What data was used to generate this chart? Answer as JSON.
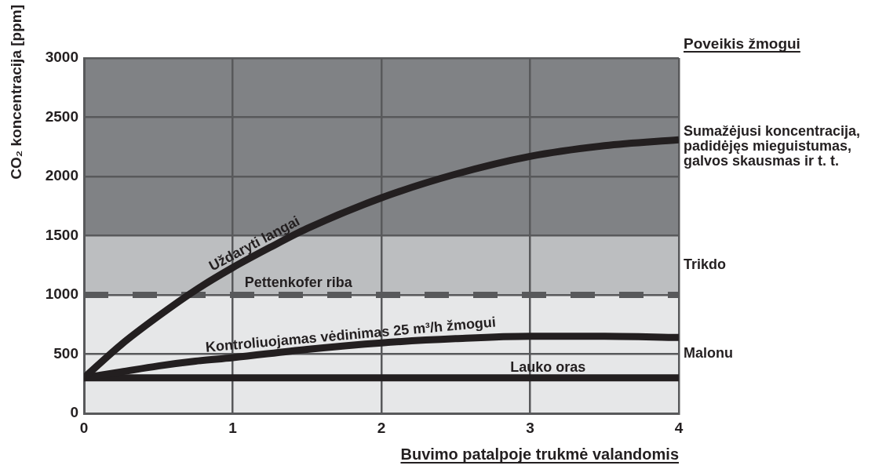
{
  "chart_data": {
    "type": "line",
    "xlabel": "Buvimo patalpoje trukmė valandomis",
    "ylabel": "CO₂ koncentracija [ppm]",
    "annotations": [
      "Poveikis žmogui"
    ],
    "series": [
      {
        "name": "Uždaryti langai",
        "color": "#231f20",
        "x": [
          0,
          0.25,
          0.5,
          0.75,
          1,
          1.25,
          1.5,
          2,
          2.5,
          3,
          3.5,
          4
        ],
        "values": [
          300,
          580,
          820,
          1040,
          1230,
          1400,
          1560,
          1820,
          2020,
          2170,
          2260,
          2310
        ]
      },
      {
        "name": "Kontroliuojamas vėdinimas 25 m³/h žmogui",
        "color": "#231f20",
        "x": [
          0,
          0.25,
          0.5,
          0.75,
          1,
          1.5,
          2,
          2.5,
          3,
          3.5,
          4
        ],
        "values": [
          300,
          350,
          400,
          440,
          470,
          540,
          595,
          630,
          650,
          650,
          640
        ]
      },
      {
        "name": "Lauko oras",
        "color": "#231f20",
        "x": [
          0,
          4
        ],
        "values": [
          300,
          300
        ]
      }
    ],
    "xlim": [
      0,
      4
    ],
    "xticks": [
      0,
      1,
      2,
      3,
      4
    ],
    "ylim": [
      0,
      3000
    ],
    "yticks": [
      0,
      500,
      1000,
      1500,
      2000,
      2500,
      3000
    ],
    "grid": true,
    "ref_lines": [
      {
        "axis": "y",
        "value": 1000,
        "label": "Pettenkofer riba",
        "color": "#58595b",
        "line_style": "dashed"
      }
    ],
    "bands": [
      {
        "axis": "y",
        "from": 0,
        "to": 1000,
        "label": "Malonu",
        "color": "#e6e7e8"
      },
      {
        "axis": "y",
        "from": 1000,
        "to": 1500,
        "label": "Trikdo",
        "color": "#bcbec0"
      },
      {
        "axis": "y",
        "from": 1500,
        "to": 3000,
        "label": "Sumažėjusi koncentracija, padidėjęs mieguistumas, galvos skausmas ir t. t.",
        "color": "#808285"
      }
    ]
  }
}
